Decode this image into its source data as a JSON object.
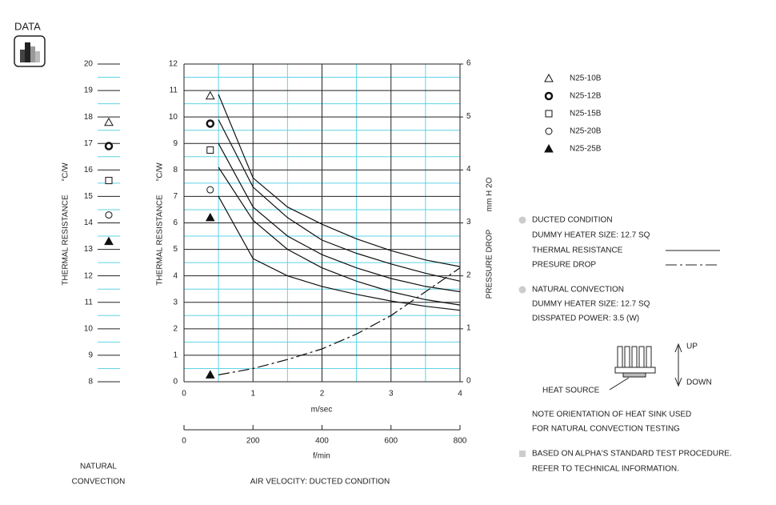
{
  "header": {
    "title": "DATA"
  },
  "chart_data": [
    {
      "type": "scatter",
      "ylabel": "THERMAL RESISTANCE",
      "yunit": "°C/W",
      "caption": [
        "NATURAL",
        "CONVECTION"
      ],
      "ylim": [
        8,
        20
      ],
      "yticks": [
        8,
        9,
        10,
        11,
        12,
        13,
        14,
        15,
        16,
        17,
        18,
        19,
        20
      ],
      "minor_yticks": [
        8.5,
        9.5,
        10.5,
        11.5,
        12.5,
        13.5,
        14.5,
        15.5,
        16.5,
        17.5,
        18.5,
        19.5
      ],
      "series": [
        {
          "marker": "triangle",
          "values": [
            17.8
          ]
        },
        {
          "marker": "bold-circle",
          "values": [
            16.9
          ]
        },
        {
          "marker": "square",
          "values": [
            15.6
          ]
        },
        {
          "marker": "circle",
          "values": [
            14.3
          ]
        },
        {
          "marker": "filled-triangle",
          "values": [
            13.3
          ]
        }
      ]
    },
    {
      "type": "line",
      "xlabel": "m/sec",
      "x2label": "f/min",
      "caption": "AIR VELOCITY:  DUCTED CONDITION",
      "ylabel": "THERMAL RESISTANCE",
      "yunit": "°C/W",
      "y2label": "PRESSURE DROP",
      "y2unit": "mm H 2O",
      "xlim": [
        0,
        4
      ],
      "xticks": [
        0,
        1,
        2,
        3,
        4
      ],
      "minor_xticks": [
        0.5,
        1.5,
        2.5,
        3.5
      ],
      "x2lim": [
        0,
        800
      ],
      "x2ticks": [
        0,
        200,
        400,
        600,
        800
      ],
      "ylim": [
        0,
        12
      ],
      "yticks": [
        0,
        1,
        2,
        3,
        4,
        5,
        6,
        7,
        8,
        9,
        10,
        11,
        12
      ],
      "minor_yticks": [
        0.5,
        1.5,
        2.5,
        3.5,
        4.5,
        5.5,
        6.5,
        7.5,
        8.5,
        9.5,
        10.5,
        11.5
      ],
      "y2lim": [
        0,
        6
      ],
      "y2ticks": [
        0,
        1,
        2,
        3,
        4,
        5,
        6
      ],
      "marker_x": 0.38,
      "x": [
        0.5,
        1,
        1.5,
        2,
        2.5,
        3,
        3.5,
        4
      ],
      "series": [
        {
          "name": "N25-10B",
          "marker": "triangle",
          "marker_value": 10.8,
          "values": [
            10.85,
            7.7,
            6.6,
            5.95,
            5.4,
            4.95,
            4.6,
            4.35
          ]
        },
        {
          "name": "N25-12B",
          "marker": "bold-circle",
          "marker_value": 9.75,
          "values": [
            9.9,
            7.35,
            6.2,
            5.35,
            4.85,
            4.45,
            4.1,
            3.8
          ]
        },
        {
          "name": "N25-15B",
          "marker": "square",
          "marker_value": 8.75,
          "values": [
            9.0,
            6.6,
            5.5,
            4.8,
            4.3,
            3.9,
            3.6,
            3.4
          ]
        },
        {
          "name": "N25-20B",
          "marker": "circle",
          "marker_value": 7.25,
          "values": [
            8.1,
            6.1,
            5.0,
            4.3,
            3.8,
            3.4,
            3.1,
            2.9
          ]
        },
        {
          "name": "N25-25B",
          "marker": "filled-triangle",
          "marker_value": 6.2,
          "values": [
            7.0,
            4.65,
            4.0,
            3.6,
            3.3,
            3.05,
            2.85,
            2.7
          ]
        },
        {
          "axis": "y2",
          "dash": true,
          "marker": "filled-triangle",
          "marker_value": 0.13,
          "values": [
            0.13,
            0.25,
            0.42,
            0.62,
            0.9,
            1.25,
            1.7,
            2.15
          ]
        }
      ]
    }
  ],
  "notes": {
    "ducted": [
      "DUCTED CONDITION",
      "DUMMY HEATER SIZE: 12.7 SQ",
      "THERMAL RESISTANCE",
      "PRESURE DROP"
    ],
    "natural": [
      "NATURAL CONVECTION",
      "DUMMY HEATER SIZE: 12.7 SQ",
      "DISSPATED POWER: 3.5 (W)"
    ],
    "diagram": {
      "up": "UP",
      "down": "DOWN",
      "source": "HEAT SOURCE"
    },
    "orientation": [
      "NOTE ORIENTATION OF HEAT SINK USED",
      "FOR NATURAL CONVECTION TESTING"
    ],
    "procedure": [
      "BASED ON ALPHA'S STANDARD TEST PROCEDURE.",
      "REFER TO TECHNICAL INFORMATION."
    ]
  }
}
